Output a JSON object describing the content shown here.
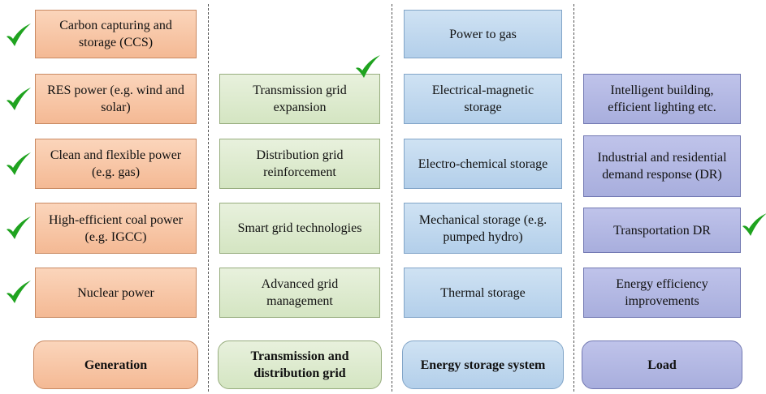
{
  "columns": [
    {
      "items": [
        "Carbon capturing and storage (CCS)",
        "RES power (e.g. wind and solar)",
        "Clean and flexible power (e.g. gas)",
        "High-efficient coal power (e.g. IGCC)",
        "Nuclear power"
      ],
      "label": "Generation"
    },
    {
      "items": [
        "Transmission grid expansion",
        "Distribution grid reinforcement",
        "Smart grid technologies",
        "Advanced grid management"
      ],
      "label": "Transmission and distribution grid"
    },
    {
      "items": [
        "Power to gas",
        "Electrical-magnetic storage",
        "Electro-chemical storage",
        "Mechanical storage (e.g. pumped hydro)",
        "Thermal storage"
      ],
      "label": "Energy storage system"
    },
    {
      "items": [
        "Intelligent building, efficient lighting etc.",
        "Industrial and residential demand response (DR)",
        "Transportation DR",
        "Energy efficiency improvements"
      ],
      "label": "Load"
    }
  ]
}
